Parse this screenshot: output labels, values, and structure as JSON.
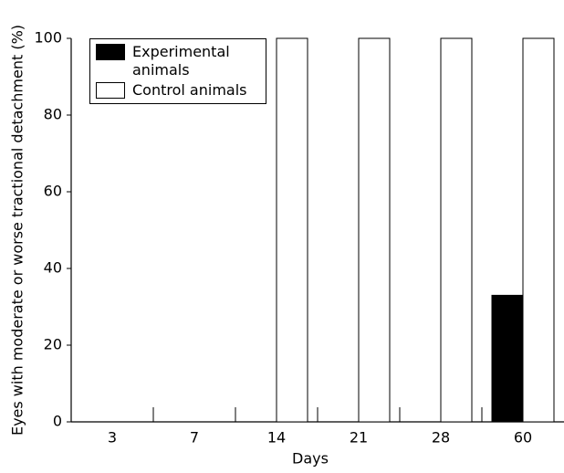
{
  "chart_data": {
    "type": "bar",
    "x_label": "Days",
    "y_label": "Eyes with moderate or worse tractional detachment (%)",
    "categories": [
      "3",
      "7",
      "14",
      "21",
      "28",
      "60"
    ],
    "series": [
      {
        "name": "Experimental animals",
        "color": "#000000",
        "values": [
          0,
          0,
          0,
          0,
          0,
          33
        ]
      },
      {
        "name": "Control animals",
        "color": "#ffffff",
        "values": [
          0,
          0,
          100,
          100,
          100,
          100
        ]
      }
    ],
    "ylim": [
      0,
      100
    ],
    "yticks": [
      0,
      20,
      40,
      60,
      80,
      100
    ],
    "grid": false,
    "legend": "upper left"
  }
}
